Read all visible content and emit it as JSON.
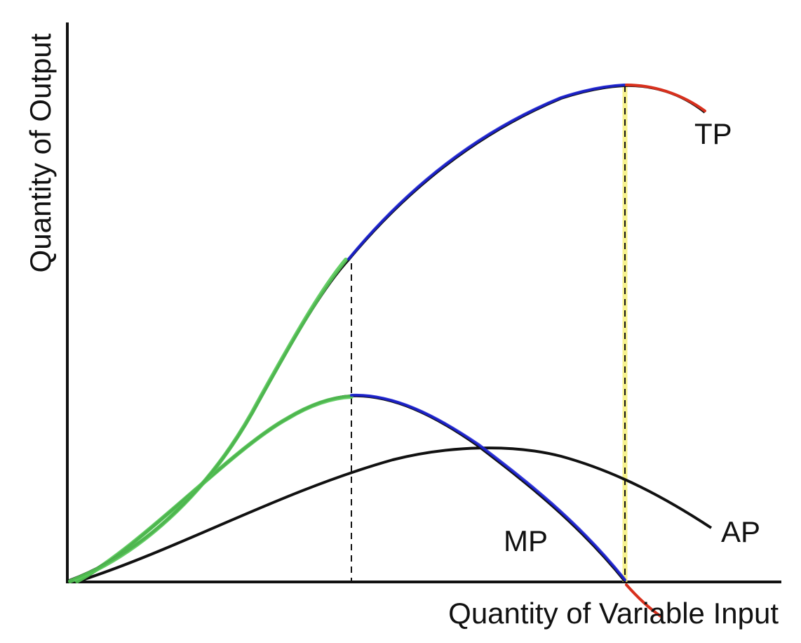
{
  "axes": {
    "x_title": "Quantity of Variable Input",
    "y_title": "Quantity of Output"
  },
  "curves": {
    "tp": {
      "label": "TP",
      "segments": {
        "increasing_returns": {
          "color": "#55c957"
        },
        "diminishing_returns": {
          "color": "#1c22d6"
        },
        "negative_returns": {
          "color": "#d8301d"
        }
      }
    },
    "mp": {
      "label": "MP",
      "segments": {
        "rising": {
          "color": "#55c957"
        },
        "falling": {
          "color": "#1c22d6"
        },
        "negative": {
          "color": "#d8301d"
        }
      }
    },
    "ap": {
      "label": "AP",
      "color": "#111111"
    }
  },
  "reference_lines": {
    "inflection_line": {
      "style": "dashed",
      "color": "#111111"
    },
    "max_tp_line": {
      "style": "dashed",
      "highlight_color": "#f6f07a"
    }
  },
  "colors": {
    "axis": "#111111",
    "base_curve": "#111111"
  }
}
